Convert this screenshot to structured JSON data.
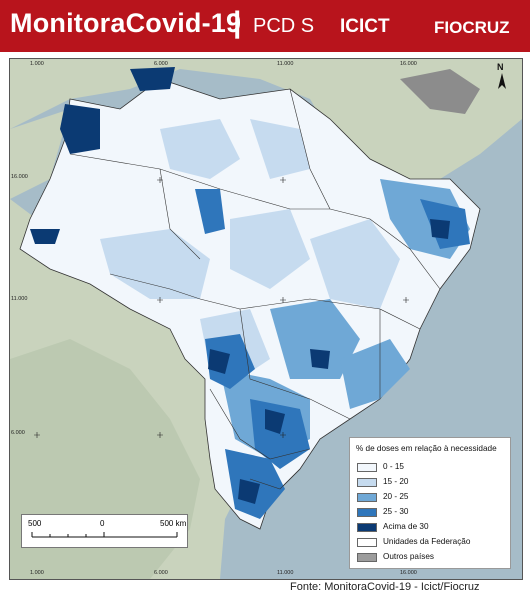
{
  "header": {
    "brand": "MonitoraCovid-19",
    "separator": "|",
    "logos": [
      "PCD S",
      "ICICT",
      "FIOCRUZ"
    ],
    "background_color": "#b8141c"
  },
  "map": {
    "north_label": "N",
    "coordinate_labels": {
      "top": [
        "1.000",
        "6.000",
        "11.000",
        "16.000"
      ],
      "left": [
        "16.000",
        "11.000",
        "6.000"
      ],
      "bottom": [
        "1.000",
        "6.000",
        "11.000",
        "16.000"
      ]
    },
    "colors": {
      "class_0_15": "#f2f7fc",
      "class_15_20": "#c6dbef",
      "class_20_25": "#6fa8d6",
      "class_25_30": "#2f76bb",
      "class_above_30": "#0b3a73",
      "outros_paises": "#9c9c9c",
      "terrain": "#c9d3bd",
      "sea": "#a6bcc8"
    }
  },
  "legend": {
    "title": "% de doses em relação à necessidade",
    "items": [
      {
        "label": "0 - 15",
        "color": "#f2f7fc"
      },
      {
        "label": "15 - 20",
        "color": "#c6dbef"
      },
      {
        "label": "20 - 25",
        "color": "#6fa8d6"
      },
      {
        "label": "25 - 30",
        "color": "#2f76bb"
      },
      {
        "label": "Acima de 30",
        "color": "#0b3a73"
      },
      {
        "label": "Unidades da Federação",
        "color": "#ffffff"
      },
      {
        "label": "Outros países",
        "color": "#9c9c9c"
      }
    ]
  },
  "scalebar": {
    "left_label": "500",
    "mid_label": "0",
    "right_label": "500 km"
  },
  "source": "Fonte: MonitoraCovid-19 - Icict/Fiocruz"
}
